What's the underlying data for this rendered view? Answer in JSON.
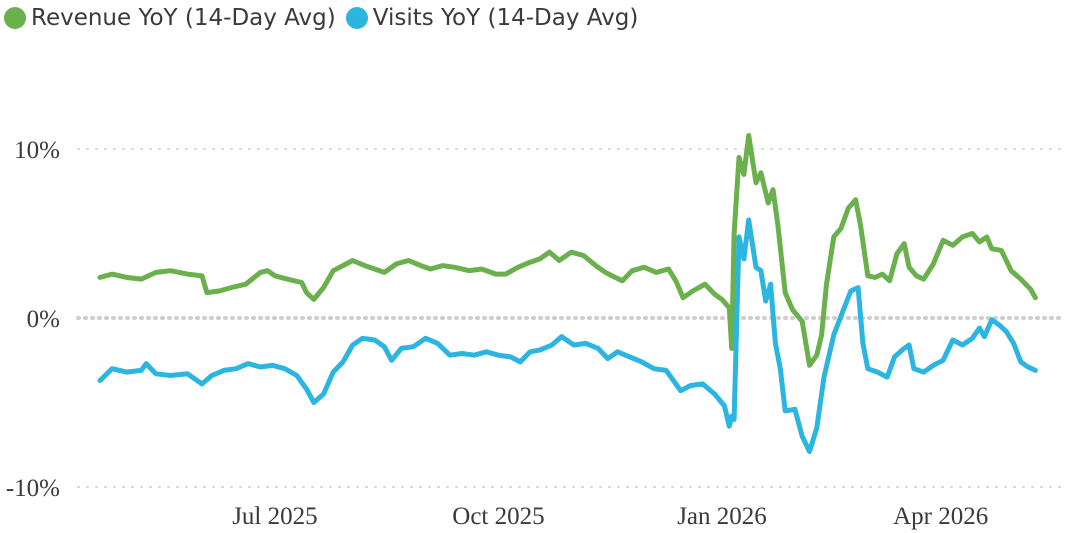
{
  "chart_data": {
    "type": "line",
    "title": "",
    "xlabel": "",
    "ylabel": "",
    "legend_position": "top-left",
    "grid": true,
    "x_range": [
      "2025-04-20",
      "2026-05-16"
    ],
    "ylim": [
      -11,
      11
    ],
    "y_ticks": [
      10,
      0,
      -10
    ],
    "y_tick_labels": [
      "10%",
      "0%",
      "-10%"
    ],
    "x_ticks": [
      "2025-07-01",
      "2025-10-01",
      "2026-01-01",
      "2026-04-01"
    ],
    "x_tick_labels": [
      "Jul 2025",
      "Oct 2025",
      "Jan 2026",
      "Apr 2026"
    ],
    "series": [
      {
        "name": "Revenue YoY (14-Day Avg)",
        "color": "#6ab04c",
        "points": [
          [
            "2025-04-20",
            2.4
          ],
          [
            "2025-04-25",
            2.6
          ],
          [
            "2025-05-01",
            2.4
          ],
          [
            "2025-05-07",
            2.3
          ],
          [
            "2025-05-13",
            2.7
          ],
          [
            "2025-05-19",
            2.8
          ],
          [
            "2025-05-26",
            2.6
          ],
          [
            "2025-06-01",
            2.5
          ],
          [
            "2025-06-03",
            1.5
          ],
          [
            "2025-06-08",
            1.6
          ],
          [
            "2025-06-13",
            1.8
          ],
          [
            "2025-06-19",
            2.0
          ],
          [
            "2025-06-25",
            2.7
          ],
          [
            "2025-06-28",
            2.8
          ],
          [
            "2025-07-01",
            2.5
          ],
          [
            "2025-07-06",
            2.3
          ],
          [
            "2025-07-12",
            2.1
          ],
          [
            "2025-07-14",
            1.5
          ],
          [
            "2025-07-17",
            1.1
          ],
          [
            "2025-07-21",
            1.8
          ],
          [
            "2025-07-25",
            2.8
          ],
          [
            "2025-07-29",
            3.1
          ],
          [
            "2025-08-02",
            3.4
          ],
          [
            "2025-08-07",
            3.1
          ],
          [
            "2025-08-11",
            2.9
          ],
          [
            "2025-08-15",
            2.7
          ],
          [
            "2025-08-20",
            3.2
          ],
          [
            "2025-08-25",
            3.4
          ],
          [
            "2025-08-30",
            3.1
          ],
          [
            "2025-09-03",
            2.9
          ],
          [
            "2025-09-08",
            3.1
          ],
          [
            "2025-09-13",
            3.0
          ],
          [
            "2025-09-19",
            2.8
          ],
          [
            "2025-09-24",
            2.9
          ],
          [
            "2025-09-30",
            2.6
          ],
          [
            "2025-10-04",
            2.6
          ],
          [
            "2025-10-09",
            3.0
          ],
          [
            "2025-10-14",
            3.3
          ],
          [
            "2025-10-18",
            3.5
          ],
          [
            "2025-10-22",
            3.9
          ],
          [
            "2025-10-26",
            3.4
          ],
          [
            "2025-10-31",
            3.9
          ],
          [
            "2025-11-05",
            3.7
          ],
          [
            "2025-11-10",
            3.1
          ],
          [
            "2025-11-14",
            2.7
          ],
          [
            "2025-11-18",
            2.4
          ],
          [
            "2025-11-21",
            2.2
          ],
          [
            "2025-11-25",
            2.8
          ],
          [
            "2025-11-30",
            3.0
          ],
          [
            "2025-12-05",
            2.7
          ],
          [
            "2025-12-10",
            2.9
          ],
          [
            "2025-12-13",
            2.2
          ],
          [
            "2025-12-16",
            1.2
          ],
          [
            "2025-12-20",
            1.6
          ],
          [
            "2025-12-25",
            2.0
          ],
          [
            "2025-12-29",
            1.4
          ],
          [
            "2026-01-01",
            1.1
          ],
          [
            "2026-01-04",
            0.6
          ],
          [
            "2026-01-05",
            -1.8
          ],
          [
            "2026-01-06",
            5.0
          ],
          [
            "2026-01-08",
            9.5
          ],
          [
            "2026-01-10",
            8.5
          ],
          [
            "2026-01-12",
            10.8
          ],
          [
            "2026-01-15",
            8.0
          ],
          [
            "2026-01-17",
            8.6
          ],
          [
            "2026-01-20",
            6.8
          ],
          [
            "2026-01-22",
            7.6
          ],
          [
            "2026-01-24",
            5.5
          ],
          [
            "2026-01-27",
            1.5
          ],
          [
            "2026-01-30",
            0.5
          ],
          [
            "2026-02-03",
            -0.2
          ],
          [
            "2026-02-06",
            -2.8
          ],
          [
            "2026-02-09",
            -2.2
          ],
          [
            "2026-02-11",
            -1.0
          ],
          [
            "2026-02-13",
            2.0
          ],
          [
            "2026-02-16",
            4.8
          ],
          [
            "2026-02-19",
            5.3
          ],
          [
            "2026-02-22",
            6.5
          ],
          [
            "2026-02-25",
            7.0
          ],
          [
            "2026-02-27",
            5.5
          ],
          [
            "2026-03-02",
            2.5
          ],
          [
            "2026-03-05",
            2.4
          ],
          [
            "2026-03-08",
            2.6
          ],
          [
            "2026-03-11",
            2.2
          ],
          [
            "2026-03-14",
            3.8
          ],
          [
            "2026-03-17",
            4.4
          ],
          [
            "2026-03-19",
            3.0
          ],
          [
            "2026-03-22",
            2.5
          ],
          [
            "2026-03-25",
            2.3
          ],
          [
            "2026-03-29",
            3.2
          ],
          [
            "2026-04-02",
            4.6
          ],
          [
            "2026-04-06",
            4.3
          ],
          [
            "2026-04-10",
            4.8
          ],
          [
            "2026-04-14",
            5.0
          ],
          [
            "2026-04-17",
            4.5
          ],
          [
            "2026-04-20",
            4.8
          ],
          [
            "2026-04-22",
            4.1
          ],
          [
            "2026-04-26",
            4.0
          ],
          [
            "2026-04-30",
            2.8
          ],
          [
            "2026-05-04",
            2.3
          ],
          [
            "2026-05-08",
            1.7
          ],
          [
            "2026-05-10",
            1.2
          ]
        ]
      },
      {
        "name": "Visits YoY (14-Day Avg)",
        "color": "#2cb5e0",
        "points": [
          [
            "2025-04-20",
            -3.7
          ],
          [
            "2025-04-25",
            -3.0
          ],
          [
            "2025-05-01",
            -3.2
          ],
          [
            "2025-05-07",
            -3.1
          ],
          [
            "2025-05-09",
            -2.7
          ],
          [
            "2025-05-13",
            -3.3
          ],
          [
            "2025-05-19",
            -3.4
          ],
          [
            "2025-05-26",
            -3.3
          ],
          [
            "2025-06-01",
            -3.9
          ],
          [
            "2025-06-05",
            -3.4
          ],
          [
            "2025-06-10",
            -3.1
          ],
          [
            "2025-06-15",
            -3.0
          ],
          [
            "2025-06-20",
            -2.7
          ],
          [
            "2025-06-25",
            -2.9
          ],
          [
            "2025-06-30",
            -2.8
          ],
          [
            "2025-07-05",
            -3.0
          ],
          [
            "2025-07-10",
            -3.4
          ],
          [
            "2025-07-14",
            -4.2
          ],
          [
            "2025-07-17",
            -5.0
          ],
          [
            "2025-07-21",
            -4.5
          ],
          [
            "2025-07-25",
            -3.2
          ],
          [
            "2025-07-29",
            -2.6
          ],
          [
            "2025-08-02",
            -1.6
          ],
          [
            "2025-08-06",
            -1.2
          ],
          [
            "2025-08-11",
            -1.3
          ],
          [
            "2025-08-15",
            -1.7
          ],
          [
            "2025-08-18",
            -2.5
          ],
          [
            "2025-08-22",
            -1.8
          ],
          [
            "2025-08-27",
            -1.7
          ],
          [
            "2025-09-01",
            -1.2
          ],
          [
            "2025-09-06",
            -1.5
          ],
          [
            "2025-09-11",
            -2.2
          ],
          [
            "2025-09-16",
            -2.1
          ],
          [
            "2025-09-21",
            -2.2
          ],
          [
            "2025-09-26",
            -2.0
          ],
          [
            "2025-10-01",
            -2.2
          ],
          [
            "2025-10-06",
            -2.3
          ],
          [
            "2025-10-10",
            -2.6
          ],
          [
            "2025-10-14",
            -2.0
          ],
          [
            "2025-10-18",
            -1.9
          ],
          [
            "2025-10-23",
            -1.6
          ],
          [
            "2025-10-27",
            -1.1
          ],
          [
            "2025-11-01",
            -1.6
          ],
          [
            "2025-11-06",
            -1.5
          ],
          [
            "2025-11-11",
            -1.8
          ],
          [
            "2025-11-15",
            -2.4
          ],
          [
            "2025-11-19",
            -2.0
          ],
          [
            "2025-11-24",
            -2.3
          ],
          [
            "2025-11-29",
            -2.6
          ],
          [
            "2025-12-04",
            -3.0
          ],
          [
            "2025-12-09",
            -3.1
          ],
          [
            "2025-12-12",
            -3.7
          ],
          [
            "2025-12-15",
            -4.3
          ],
          [
            "2025-12-19",
            -4.0
          ],
          [
            "2025-12-24",
            -3.9
          ],
          [
            "2025-12-29",
            -4.5
          ],
          [
            "2026-01-02",
            -5.2
          ],
          [
            "2026-01-04",
            -6.4
          ],
          [
            "2026-01-05",
            -5.8
          ],
          [
            "2026-01-06",
            -6.0
          ],
          [
            "2026-01-08",
            4.8
          ],
          [
            "2026-01-10",
            3.5
          ],
          [
            "2026-01-12",
            5.8
          ],
          [
            "2026-01-15",
            3.0
          ],
          [
            "2026-01-17",
            2.8
          ],
          [
            "2026-01-19",
            1.0
          ],
          [
            "2026-01-21",
            2.0
          ],
          [
            "2026-01-23",
            -1.5
          ],
          [
            "2026-01-25",
            -3.0
          ],
          [
            "2026-01-27",
            -5.5
          ],
          [
            "2026-01-31",
            -5.4
          ],
          [
            "2026-02-03",
            -7.0
          ],
          [
            "2026-02-06",
            -7.9
          ],
          [
            "2026-02-09",
            -6.5
          ],
          [
            "2026-02-12",
            -3.5
          ],
          [
            "2026-02-16",
            -1.0
          ],
          [
            "2026-02-20",
            0.5
          ],
          [
            "2026-02-23",
            1.6
          ],
          [
            "2026-02-26",
            1.8
          ],
          [
            "2026-02-28",
            -1.5
          ],
          [
            "2026-03-02",
            -3.0
          ],
          [
            "2026-03-06",
            -3.2
          ],
          [
            "2026-03-10",
            -3.5
          ],
          [
            "2026-03-13",
            -2.3
          ],
          [
            "2026-03-17",
            -1.8
          ],
          [
            "2026-03-19",
            -1.6
          ],
          [
            "2026-03-21",
            -3.0
          ],
          [
            "2026-03-25",
            -3.2
          ],
          [
            "2026-03-29",
            -2.8
          ],
          [
            "2026-04-02",
            -2.5
          ],
          [
            "2026-04-06",
            -1.3
          ],
          [
            "2026-04-10",
            -1.6
          ],
          [
            "2026-04-14",
            -1.2
          ],
          [
            "2026-04-17",
            -0.6
          ],
          [
            "2026-04-19",
            -1.1
          ],
          [
            "2026-04-22",
            -0.1
          ],
          [
            "2026-04-25",
            -0.4
          ],
          [
            "2026-04-28",
            -0.8
          ],
          [
            "2026-05-01",
            -1.5
          ],
          [
            "2026-05-04",
            -2.6
          ],
          [
            "2026-05-07",
            -2.9
          ],
          [
            "2026-05-10",
            -3.1
          ]
        ]
      }
    ]
  }
}
